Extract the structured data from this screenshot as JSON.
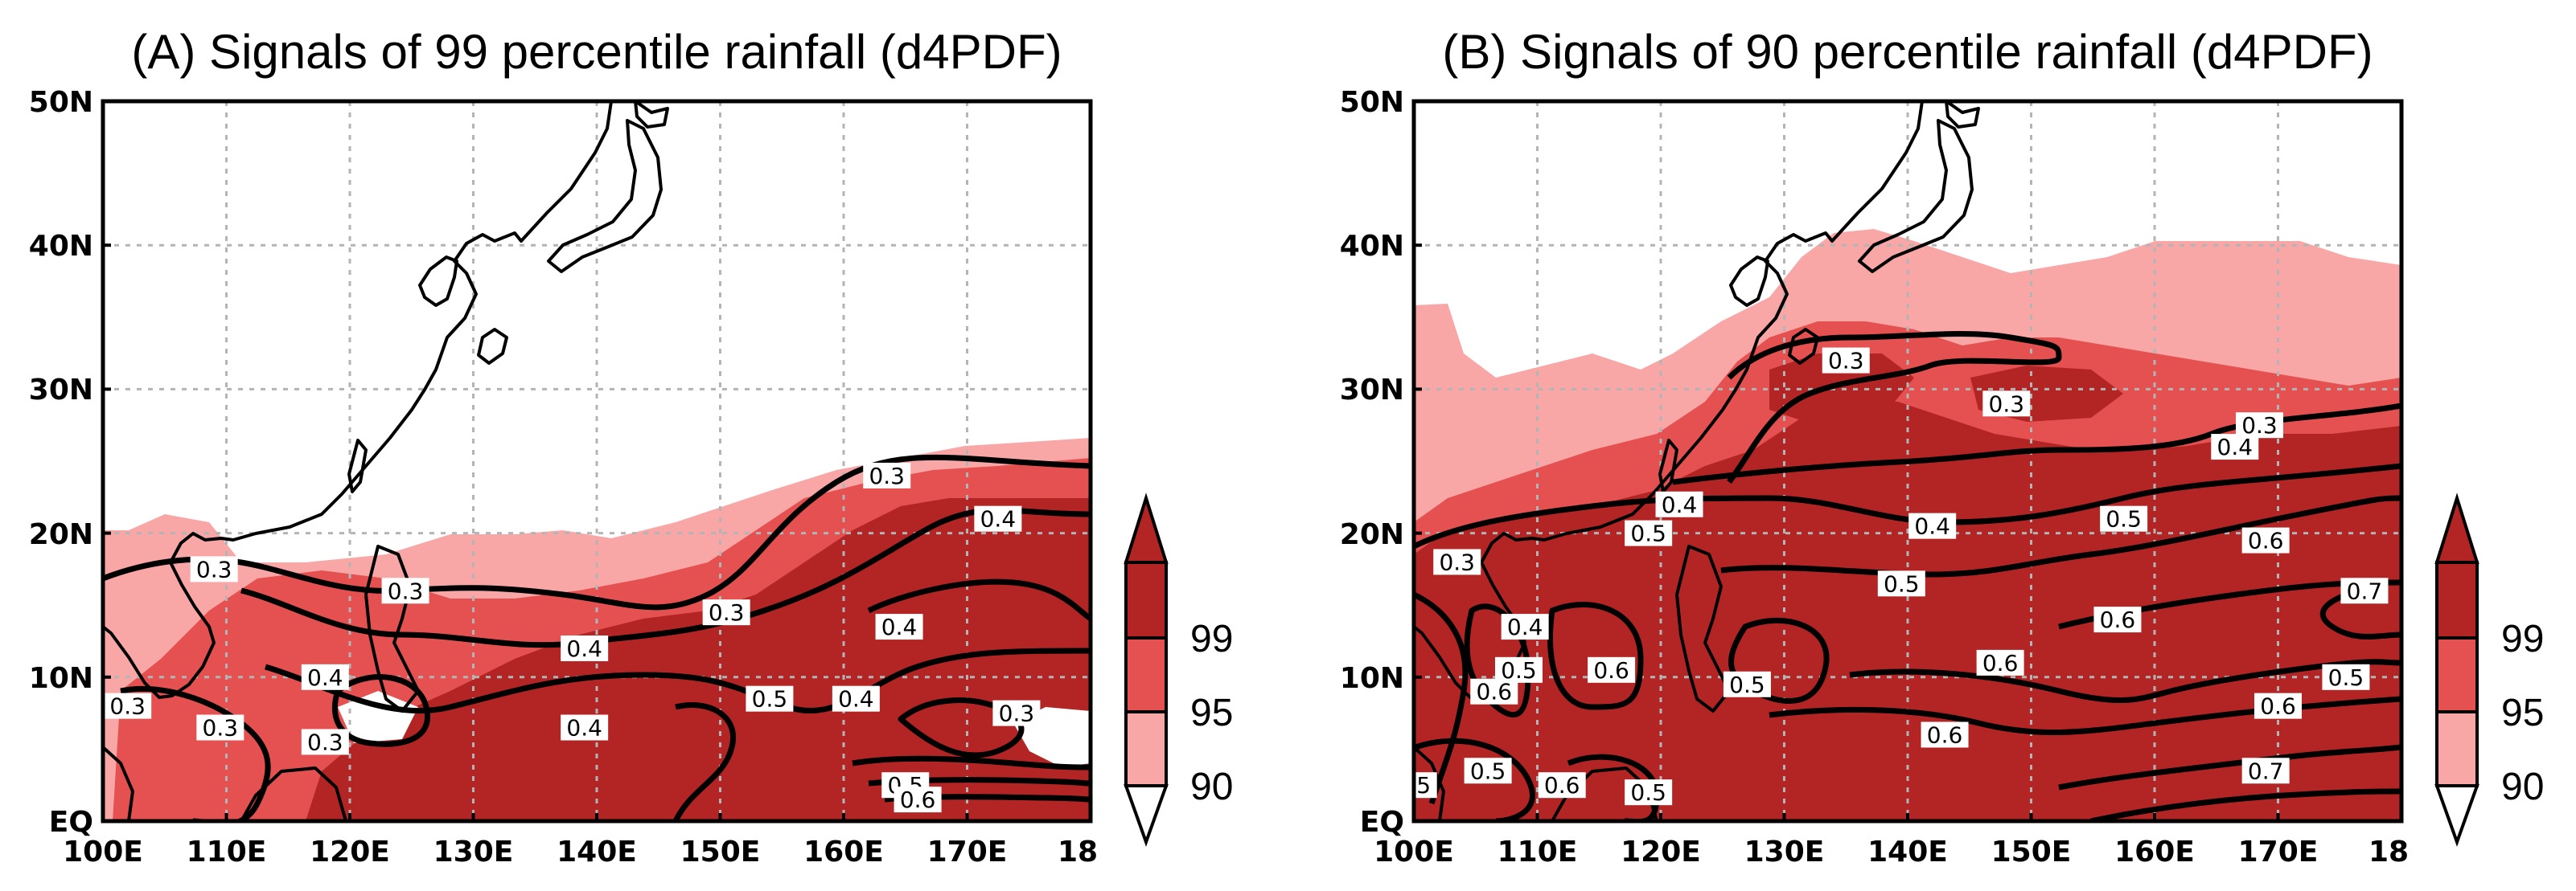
{
  "colors": {
    "level_99": "#b32424",
    "level_95": "#e55050",
    "level_90": "#f8a6a6",
    "contour": "#000000",
    "grid": "#b4b4b4",
    "land_outline": "#000000"
  },
  "icons": {
    "colorbar_top": "triangle-up",
    "colorbar_bottom": "triangle-down"
  },
  "panels": [
    {
      "title": "(A) Signals of 99 percentile rainfall (d4PDF)",
      "y_ticks": [
        "50N",
        "40N",
        "30N",
        "20N",
        "10N",
        "EQ"
      ],
      "x_ticks": [
        "100E",
        "110E",
        "120E",
        "130E",
        "140E",
        "150E",
        "160E",
        "170E",
        "18"
      ],
      "shading": [
        {
          "level": "90",
          "lon": [
            100,
            180
          ],
          "lat": [
            0,
            20
          ]
        },
        {
          "level": "95",
          "lon": [
            115,
            180
          ],
          "lat": [
            0,
            17
          ]
        },
        {
          "level": "99",
          "lon": [
            133,
            180
          ],
          "lat": [
            0,
            14
          ]
        }
      ],
      "contour_labels": [
        {
          "text": "0.3",
          "lon": 109,
          "lat": 17.5
        },
        {
          "text": "0.3",
          "lon": 124.5,
          "lat": 16
        },
        {
          "text": "0.3",
          "lon": 150.5,
          "lat": 14.5
        },
        {
          "text": "0.3",
          "lon": 163.5,
          "lat": 24
        },
        {
          "text": "0.4",
          "lon": 172.5,
          "lat": 21
        },
        {
          "text": "0.4",
          "lon": 139,
          "lat": 12
        },
        {
          "text": "0.4",
          "lon": 164.5,
          "lat": 13.5
        },
        {
          "text": "0.4",
          "lon": 139,
          "lat": 6.5
        },
        {
          "text": "0.5",
          "lon": 154,
          "lat": 8.5
        },
        {
          "text": "0.4",
          "lon": 161,
          "lat": 8.5
        },
        {
          "text": "0.3",
          "lon": 174,
          "lat": 7.5
        },
        {
          "text": "0.3",
          "lon": 102,
          "lat": 8
        },
        {
          "text": "0.3",
          "lon": 109.5,
          "lat": 6.5
        },
        {
          "text": "0.4",
          "lon": 118,
          "lat": 10
        },
        {
          "text": "0.3",
          "lon": 118,
          "lat": 5.5
        },
        {
          "text": "0.5",
          "lon": 165,
          "lat": 2.5
        },
        {
          "text": "0.6",
          "lon": 166,
          "lat": 1.5
        }
      ],
      "colorbar": {
        "labels": [
          "99",
          "95",
          "90"
        ]
      }
    },
    {
      "title": "(B) Signals of 90 percentile rainfall (d4PDF)",
      "y_ticks": [
        "50N",
        "40N",
        "30N",
        "20N",
        "10N",
        "EQ"
      ],
      "x_ticks": [
        "100E",
        "110E",
        "120E",
        "130E",
        "140E",
        "150E",
        "160E",
        "170E",
        "18"
      ],
      "shading": [
        {
          "level": "90",
          "lon": [
            100,
            180
          ],
          "lat": [
            0,
            37
          ]
        },
        {
          "level": "95",
          "lon": [
            122,
            180
          ],
          "lat": [
            0,
            32
          ]
        },
        {
          "level": "99",
          "lon": [
            100,
            180
          ],
          "lat": [
            0,
            22
          ]
        }
      ],
      "contour_labels": [
        {
          "text": "0.3",
          "lon": 135,
          "lat": 32
        },
        {
          "text": "0.3",
          "lon": 148,
          "lat": 29
        },
        {
          "text": "0.3",
          "lon": 168.5,
          "lat": 27.5
        },
        {
          "text": "0.4",
          "lon": 166.5,
          "lat": 26
        },
        {
          "text": "0.4",
          "lon": 121.5,
          "lat": 22
        },
        {
          "text": "0.5",
          "lon": 119,
          "lat": 20
        },
        {
          "text": "0.4",
          "lon": 142,
          "lat": 20.5
        },
        {
          "text": "0.5",
          "lon": 157.5,
          "lat": 21
        },
        {
          "text": "0.6",
          "lon": 169,
          "lat": 19.5
        },
        {
          "text": "0.3",
          "lon": 103.5,
          "lat": 18
        },
        {
          "text": "0.5",
          "lon": 139.5,
          "lat": 16.5
        },
        {
          "text": "0.7",
          "lon": 177,
          "lat": 16
        },
        {
          "text": "0.4",
          "lon": 109,
          "lat": 13.5
        },
        {
          "text": "0.6",
          "lon": 157,
          "lat": 14
        },
        {
          "text": "0.5",
          "lon": 108.5,
          "lat": 10.5
        },
        {
          "text": "0.6",
          "lon": 106.5,
          "lat": 9
        },
        {
          "text": "0.6",
          "lon": 116,
          "lat": 10.5
        },
        {
          "text": "0.5",
          "lon": 127,
          "lat": 9.5
        },
        {
          "text": "0.6",
          "lon": 147.5,
          "lat": 11
        },
        {
          "text": "0.5",
          "lon": 175.5,
          "lat": 10
        },
        {
          "text": "0.6",
          "lon": 170,
          "lat": 8
        },
        {
          "text": "0.6",
          "lon": 143,
          "lat": 6
        },
        {
          "text": "0.7",
          "lon": 169,
          "lat": 3.5
        },
        {
          "text": ".5",
          "lon": 100.5,
          "lat": 2.5
        },
        {
          "text": "0.5",
          "lon": 106,
          "lat": 3.5
        },
        {
          "text": "0.6",
          "lon": 112,
          "lat": 2.5
        },
        {
          "text": "0.5",
          "lon": 119,
          "lat": 2
        }
      ],
      "colorbar": {
        "labels": [
          "99",
          "95",
          "90"
        ]
      }
    }
  ]
}
